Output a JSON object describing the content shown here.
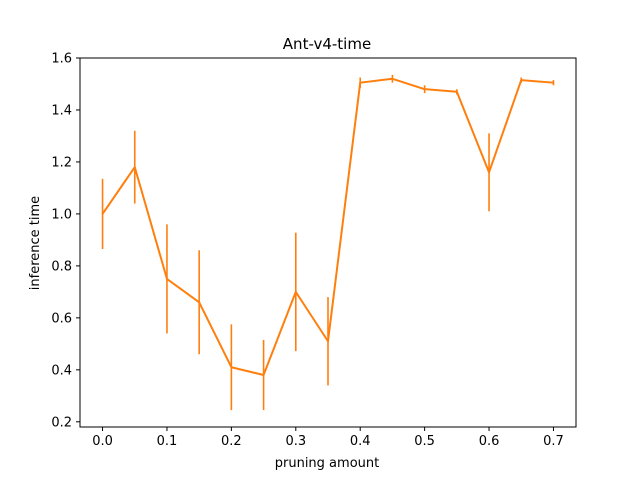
{
  "chart_data": {
    "type": "line",
    "title": "Ant-v4-time",
    "xlabel": "pruning amount",
    "ylabel": "inference time",
    "xlim": [
      -0.035,
      0.735
    ],
    "ylim": [
      0.18,
      1.6
    ],
    "xticks": [
      0.0,
      0.1,
      0.2,
      0.3,
      0.4,
      0.5,
      0.6,
      0.7
    ],
    "xtick_labels": [
      "0.0",
      "0.1",
      "0.2",
      "0.3",
      "0.4",
      "0.5",
      "0.6",
      "0.7"
    ],
    "yticks": [
      0.2,
      0.4,
      0.6,
      0.8,
      1.0,
      1.2,
      1.4,
      1.6
    ],
    "ytick_labels": [
      "0.2",
      "0.4",
      "0.6",
      "0.8",
      "1.0",
      "1.2",
      "1.4",
      "1.6"
    ],
    "grid": false,
    "series": [
      {
        "color": "#ff7f0e",
        "x": [
          0.0,
          0.05,
          0.1,
          0.15,
          0.2,
          0.25,
          0.3,
          0.35,
          0.4,
          0.45,
          0.5,
          0.55,
          0.6,
          0.65,
          0.7
        ],
        "y": [
          1.0,
          1.18,
          0.75,
          0.66,
          0.41,
          0.38,
          0.7,
          0.51,
          1.505,
          1.52,
          1.48,
          1.47,
          1.16,
          1.515,
          1.505
        ],
        "yerr": [
          0.135,
          0.14,
          0.21,
          0.2,
          0.165,
          0.135,
          0.228,
          0.17,
          0.02,
          0.015,
          0.015,
          0.01,
          0.15,
          0.01,
          0.01
        ]
      }
    ]
  }
}
